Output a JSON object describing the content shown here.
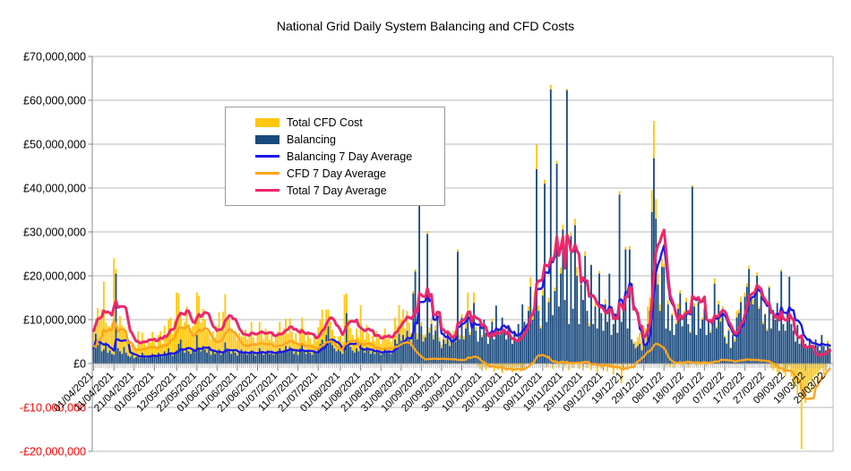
{
  "title": "National Grid Daily System Balancing and CFD Costs",
  "legend": {
    "items": [
      {
        "label": "Total CFD Cost",
        "color": "#FFC70F",
        "swatch": "bar"
      },
      {
        "label": "Balancing",
        "color": "#1A4B7E",
        "swatch": "bar"
      },
      {
        "label": "Balancing 7 Day Average",
        "color": "#1A1AE8",
        "swatch": "line"
      },
      {
        "label": "CFD 7 Day Average",
        "color": "#FFA31B",
        "swatch": "line"
      },
      {
        "label": "Total 7 Day Average",
        "color": "#ED2769",
        "swatch": "line"
      }
    ]
  },
  "axis": {
    "currency_unit": "£",
    "value_unit": "millions GBP",
    "y_min": -20,
    "y_max": 70,
    "grid": true,
    "negative_label_color": "#FF0000",
    "y_ticks": [
      {
        "label": "£70,000,000",
        "value": 70
      },
      {
        "label": "£60,000,000",
        "value": 60
      },
      {
        "label": "£50,000,000",
        "value": 50
      },
      {
        "label": "£40,000,000",
        "value": 40
      },
      {
        "label": "£30,000,000",
        "value": 30
      },
      {
        "label": "£20,000,000",
        "value": 20
      },
      {
        "label": "£10,000,000",
        "value": 10
      },
      {
        "label": "£0",
        "value": 0
      },
      {
        "label": "-£10,000,000",
        "value": -10
      },
      {
        "label": "-£20,000,000",
        "value": -20
      }
    ],
    "x_ticks": [
      {
        "label": "01/04/2021",
        "day": 0
      },
      {
        "label": "11/04/2021",
        "day": 10
      },
      {
        "label": "21/04/2021",
        "day": 20
      },
      {
        "label": "01/05/2021",
        "day": 30
      },
      {
        "label": "12/05/2021",
        "day": 41
      },
      {
        "label": "22/05/2021",
        "day": 51
      },
      {
        "label": "01/06/2021",
        "day": 61
      },
      {
        "label": "11/06/2021",
        "day": 71
      },
      {
        "label": "21/06/2021",
        "day": 81
      },
      {
        "label": "01/07/2021",
        "day": 91
      },
      {
        "label": "11/07/2021",
        "day": 101
      },
      {
        "label": "21/07/2021",
        "day": 111
      },
      {
        "label": "01/08/2021",
        "day": 122
      },
      {
        "label": "11/08/2021",
        "day": 132
      },
      {
        "label": "21/08/2021",
        "day": 142
      },
      {
        "label": "31/08/2021",
        "day": 152
      },
      {
        "label": "10/09/2021",
        "day": 162
      },
      {
        "label": "20/09/2021",
        "day": 172
      },
      {
        "label": "30/09/2021",
        "day": 182
      },
      {
        "label": "10/10/2021",
        "day": 192
      },
      {
        "label": "20/10/2021",
        "day": 202
      },
      {
        "label": "30/10/2021",
        "day": 212
      },
      {
        "label": "09/11/2021",
        "day": 222
      },
      {
        "label": "19/11/2021",
        "day": 232
      },
      {
        "label": "29/11/2021",
        "day": 242
      },
      {
        "label": "09/12/2021",
        "day": 252
      },
      {
        "label": "19/12/21",
        "day": 262
      },
      {
        "label": "29/12/21",
        "day": 272
      },
      {
        "label": "08/01/22",
        "day": 282
      },
      {
        "label": "18/01/22",
        "day": 292
      },
      {
        "label": "28/01/22",
        "day": 302
      },
      {
        "label": "07/02/22",
        "day": 312
      },
      {
        "label": "17/02/22",
        "day": 322
      },
      {
        "label": "27/02/22",
        "day": 332
      },
      {
        "label": "09/03/22",
        "day": 342
      },
      {
        "label": "19/03/22",
        "day": 352
      },
      {
        "label": "29/03/22",
        "day": 362
      }
    ]
  },
  "chart_data": {
    "type": "bar",
    "subtype": "stacked daily bars with 7-day moving-average lines",
    "title": "National Grid Daily System Balancing and CFD Costs",
    "xlabel": "",
    "ylabel": "",
    "x_start_date": "01/04/2021",
    "x_days": 365,
    "ylim": [
      -20000000,
      70000000
    ],
    "values_are_in": "millions of GBP per day (estimated from plot)",
    "series": [
      {
        "id": "cfd",
        "name": "Total CFD Cost",
        "type": "bar",
        "stack_order": "on top of Balancing (negatives plotted below zero)",
        "color": "#FFC70F",
        "values": [
          4.0,
          3.5,
          8.5,
          5.2,
          9.5,
          15.5,
          4.5,
          6.0,
          5.5,
          7.0,
          22.0,
          1.0,
          5.0,
          8.0,
          6.5,
          4.5,
          4.0,
          3.5,
          2.8,
          2.2,
          2.5,
          2.0,
          5.5,
          3.0,
          4.5,
          3.5,
          2.8,
          4.0,
          3.2,
          5.0,
          3.5,
          2.5,
          4.0,
          5.5,
          3.0,
          5.8,
          4.5,
          6.5,
          8.0,
          5.0,
          7.5,
          13.2,
          11.5,
          6.0,
          5.5,
          7.0,
          9.5,
          6.2,
          4.5,
          5.5,
          7.2,
          9.7,
          12.0,
          6.5,
          8.5,
          6.8,
          5.0,
          4.2,
          3.5,
          4.5,
          3.8,
          6.0,
          8.5,
          5.5,
          9.0,
          11.0,
          7.0,
          8.0,
          5.5,
          4.0,
          5.0,
          3.5,
          4.5,
          3.0,
          4.0,
          5.0,
          3.5,
          4.5,
          6.5,
          3.8,
          3.0,
          4.2,
          6.0,
          4.5,
          3.5,
          5.5,
          4.0,
          3.2,
          4.2,
          3.0,
          3.8,
          4.5,
          6.0,
          4.0,
          5.0,
          6.2,
          4.0,
          6.5,
          4.2,
          3.2,
          4.2,
          2.8,
          4.5,
          6.3,
          3.8,
          3.0,
          4.0,
          3.2,
          2.5,
          3.5,
          3.0,
          4.8,
          5.5,
          6.8,
          4.5,
          5.8,
          3.8,
          4.5,
          3.5,
          2.8,
          2.2,
          3.0,
          3.5,
          2.8,
          12.2,
          4.5,
          5.5,
          4.2,
          3.5,
          3.0,
          4.5,
          3.2,
          8.8,
          4.0,
          3.0,
          5.0,
          3.8,
          2.8,
          3.5,
          2.8,
          4.2,
          3.2,
          2.5,
          3.8,
          4.5,
          3.0,
          3.8,
          2.8,
          3.5,
          5.0,
          4.0,
          6.5,
          4.8,
          5.8,
          3.5,
          4.5,
          3.8,
          3.0,
          0.5,
          0.5,
          1.5,
          0.8,
          1.0,
          1.5,
          0.7,
          0.7,
          1.2,
          1.5,
          1.0,
          1.2,
          0.8,
          1.0,
          0.8,
          1.5,
          1.0,
          0.8,
          1.2,
          0.5,
          1.0,
          0.8,
          0.6,
          1.0,
          0.8,
          0.8,
          1.2,
          4.2,
          0.6,
          1.0,
          2.4,
          0.8,
          -0.5,
          -1.2,
          0.5,
          -0.8,
          -1.5,
          -0.6,
          -1.0,
          0.8,
          -1.8,
          -0.9,
          -1.4,
          -0.7,
          -2.2,
          -1.0,
          -1.6,
          -0.8,
          -1.2,
          -2.0,
          -0.9,
          -1.5,
          -0.7,
          -1.8,
          -1.0,
          -1.3,
          0.5,
          1.0,
          2.2,
          0.8,
          1.5,
          5.6,
          1.2,
          0.6,
          1.8,
          0.9,
          -0.8,
          1.0,
          1.0,
          -1.2,
          0.8,
          0.7,
          -0.9,
          1.4,
          1.2,
          -0.6,
          0.3,
          -1.5,
          0.8,
          -1.0,
          1.5,
          2.0,
          -1.2,
          0.9,
          -0.7,
          1.1,
          -1.0,
          0.8,
          -1.5,
          -0.5,
          1.0,
          -2.0,
          0.6,
          -1.2,
          -0.8,
          1.2,
          -1.8,
          -0.5,
          -1.0,
          -2.5,
          0.5,
          -1.5,
          0.8,
          -4.5,
          -1.0,
          0.6,
          -1.5,
          0.8,
          -0.8,
          0.5,
          1.5,
          2.0,
          2.5,
          2.2,
          3.0,
          3.5,
          4.0,
          3.0,
          5.0,
          8.5,
          4.5,
          2.5,
          1.5,
          2.0,
          0.8,
          -0.5,
          1.0,
          -0.8,
          0.5,
          -1.0,
          0.6,
          1.2,
          0.8,
          -0.6,
          0.5,
          1.0,
          -0.8,
          0.4,
          0.3,
          0.8,
          -0.5,
          0.6,
          -0.4,
          0.5,
          0.8,
          -0.6,
          0.4,
          0.5,
          0.5,
          1.2,
          0.4,
          0.8,
          2.0,
          0.6,
          0.4,
          0.3,
          0.5,
          0.2,
          0.4,
          0.6,
          1.5,
          0.8,
          1.2,
          0.5,
          1.0,
          0.8,
          0.8,
          0.6,
          1.2,
          0.7,
          0.8,
          0.5,
          0.4,
          0.6,
          0.3,
          0.5,
          0.5,
          -1.0,
          -1.5,
          -1.0,
          -2.0,
          -2.5,
          0.4,
          -2.0,
          -3.0,
          -1.5,
          -0.5,
          -3.0,
          -5.5,
          -4.5,
          -7.0,
          -3.0,
          -19.5,
          -7.5,
          -9.0,
          -6.0,
          -4.0,
          -6.5,
          -3.0,
          -2.5,
          -4.5,
          -1.5,
          -1.0,
          -2.5,
          -0.5,
          0.8,
          1.0
        ]
      },
      {
        "id": "balancing",
        "name": "Balancing",
        "type": "bar",
        "stack_order": "base of stack from zero",
        "color": "#1A4B7E",
        "values": [
          3.5,
          6.8,
          4.2,
          5.5,
          2.8,
          3.2,
          4.8,
          2.5,
          3.0,
          2.2,
          2.0,
          20.5,
          3.5,
          2.8,
          2.2,
          3.8,
          2.5,
          1.8,
          1.5,
          2.0,
          1.2,
          1.5,
          1.8,
          1.2,
          2.5,
          1.5,
          1.2,
          1.8,
          1.5,
          2.2,
          2.0,
          1.5,
          2.5,
          1.8,
          1.5,
          2.8,
          2.0,
          3.5,
          2.5,
          1.8,
          2.2,
          3.0,
          4.5,
          5.5,
          3.0,
          2.5,
          3.5,
          2.8,
          2.2,
          3.0,
          2.5,
          6.5,
          3.5,
          2.8,
          4.0,
          3.2,
          2.5,
          3.5,
          2.0,
          2.8,
          2.2,
          2.5,
          3.2,
          2.0,
          2.8,
          4.8,
          3.5,
          2.8,
          2.2,
          3.0,
          2.5,
          1.8,
          2.5,
          3.2,
          2.2,
          2.8,
          2.0,
          2.5,
          3.0,
          2.2,
          1.8,
          2.5,
          3.5,
          2.8,
          2.0,
          2.5,
          3.0,
          2.2,
          2.8,
          2.0,
          2.5,
          2.8,
          3.5,
          2.5,
          3.0,
          4.0,
          2.8,
          3.8,
          3.0,
          2.2,
          2.8,
          2.0,
          3.5,
          4.2,
          2.8,
          2.2,
          3.0,
          2.5,
          2.0,
          2.8,
          2.2,
          3.5,
          4.5,
          5.5,
          4.0,
          6.5,
          8.5,
          5.0,
          4.2,
          3.5,
          2.8,
          3.2,
          2.8,
          2.2,
          3.5,
          11.5,
          4.5,
          3.8,
          3.0,
          2.5,
          3.5,
          2.8,
          4.5,
          3.2,
          2.5,
          3.8,
          3.0,
          2.2,
          2.8,
          2.2,
          3.2,
          2.5,
          2.0,
          2.8,
          3.5,
          2.5,
          3.0,
          2.2,
          2.8,
          5.5,
          4.5,
          6.8,
          5.2,
          6.5,
          4.5,
          7.5,
          5.5,
          4.0,
          16.0,
          21.0,
          5.5,
          38.0,
          8.5,
          5.0,
          6.0,
          29.5,
          7.0,
          9.0,
          5.5,
          7.5,
          10.5,
          5.0,
          3.5,
          5.5,
          4.5,
          7.0,
          4.0,
          5.5,
          6.5,
          5.0,
          25.5,
          5.5,
          10.5,
          5.5,
          8.0,
          12.0,
          6.5,
          9.0,
          13.8,
          7.5,
          5.0,
          8.5,
          6.0,
          10.0,
          7.0,
          4.5,
          6.5,
          9.5,
          5.5,
          13.2,
          8.0,
          6.5,
          10.5,
          7.5,
          5.5,
          8.5,
          6.0,
          4.5,
          7.5,
          5.0,
          9.0,
          6.5,
          13.5,
          9.5,
          8.5,
          12.0,
          17.5,
          10.0,
          15.0,
          44.3,
          12.0,
          8.0,
          15.5,
          41.0,
          9.5,
          14.0,
          62.5,
          11.0,
          16.5,
          45.5,
          13.0,
          20.5,
          30.5,
          14.5,
          62.3,
          9.0,
          29.0,
          12.5,
          31.5,
          20.0,
          9.0,
          18.0,
          14.5,
          24.5,
          12.0,
          8.5,
          22.5,
          9.0,
          13.0,
          8.0,
          20.5,
          11.5,
          7.5,
          13.5,
          9.5,
          20.5,
          6.5,
          9.0,
          11.0,
          7.0,
          38.5,
          9.5,
          13.0,
          26.0,
          8.0,
          26.0,
          5.5,
          4.5,
          3.5,
          4.0,
          4.5,
          3.0,
          5.5,
          4.5,
          9.0,
          12.0,
          34.5,
          46.8,
          33.0,
          18.0,
          12.0,
          22.0,
          22.0,
          8.0,
          13.5,
          7.5,
          11.0,
          6.5,
          9.0,
          12.5,
          16.0,
          8.5,
          11.5,
          14.0,
          9.0,
          7.0,
          40.3,
          13.0,
          6.5,
          14.0,
          8.0,
          10.0,
          12.5,
          6.5,
          9.5,
          7.0,
          10.0,
          18.2,
          8.0,
          13.5,
          9.5,
          12.5,
          6.0,
          4.5,
          7.5,
          3.5,
          6.5,
          5.0,
          10.5,
          11.5,
          14.0,
          9.5,
          15.2,
          17.5,
          21.5,
          15.0,
          13.5,
          16.5,
          20.0,
          12.5,
          15.3,
          9.0,
          11.2,
          7.5,
          17.3,
          8.0,
          12.2,
          10.0,
          13.8,
          7.5,
          21.0,
          9.0,
          7.5,
          11.5,
          19.8,
          9.0,
          7.5,
          5.0,
          8.8,
          4.5,
          6.0,
          5.5,
          4.5,
          3.5,
          5.5,
          4.0,
          3.5,
          5.5,
          4.0,
          3.0,
          6.5,
          4.0,
          3.0,
          4.5,
          3.5
        ]
      },
      {
        "id": "balancing_avg",
        "name": "Balancing 7 Day Average",
        "type": "line",
        "color": "#1A1AE8",
        "derived": "trailing 7-day mean of Balancing"
      },
      {
        "id": "cfd_avg",
        "name": "CFD 7 Day Average",
        "type": "line",
        "color": "#FFA31B",
        "derived": "trailing 7-day mean of Total CFD Cost"
      },
      {
        "id": "total_avg",
        "name": "Total 7 Day Average",
        "type": "line",
        "color": "#ED2769",
        "derived": "trailing 7-day mean of |Balancing + CFD|"
      }
    ]
  }
}
